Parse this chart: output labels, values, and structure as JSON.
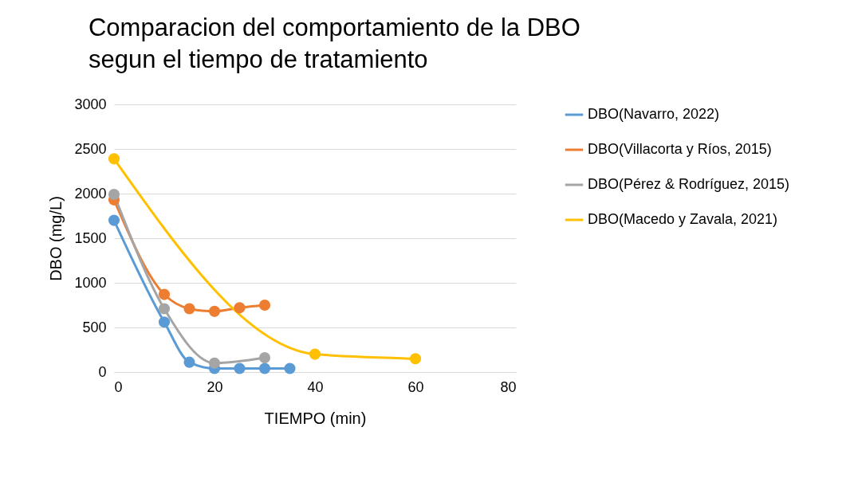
{
  "chart_data": {
    "type": "line",
    "title": "Comparacion del comportamiento de la DBO segun el tiempo de tratamiento",
    "xlabel": "TIEMPO (min)",
    "ylabel": "DBO (mg/L)",
    "xlim": [
      0,
      80
    ],
    "xticks": [
      0,
      20,
      40,
      60,
      80
    ],
    "ylim": [
      0,
      3000
    ],
    "yticks": [
      0,
      500,
      1000,
      1500,
      2000,
      2500,
      3000
    ],
    "grid": "y",
    "legend": "right",
    "marker": "circle",
    "line_style": "solid",
    "series": [
      {
        "name": "DBO(Navarro, 2022)",
        "color": "#5b9bd5",
        "x": [
          0,
          10,
          15,
          20,
          25,
          30,
          35
        ],
        "values": [
          1700,
          560,
          110,
          40,
          40,
          40,
          40
        ]
      },
      {
        "name": "DBO(Villacorta y Ríos, 2015)",
        "color": "#ed7d31",
        "x": [
          0,
          10,
          15,
          20,
          25,
          30
        ],
        "values": [
          1930,
          870,
          710,
          680,
          720,
          750
        ]
      },
      {
        "name": "DBO(Pérez & Rodríguez, 2015)",
        "color": "#a5a5a5",
        "x": [
          0,
          10,
          20,
          30
        ],
        "values": [
          1990,
          710,
          100,
          160
        ]
      },
      {
        "name": "DBO(Macedo y Zavala, 2021)",
        "color": "#ffc000",
        "x": [
          0,
          40,
          60
        ],
        "values": [
          2390,
          200,
          150
        ]
      }
    ]
  }
}
